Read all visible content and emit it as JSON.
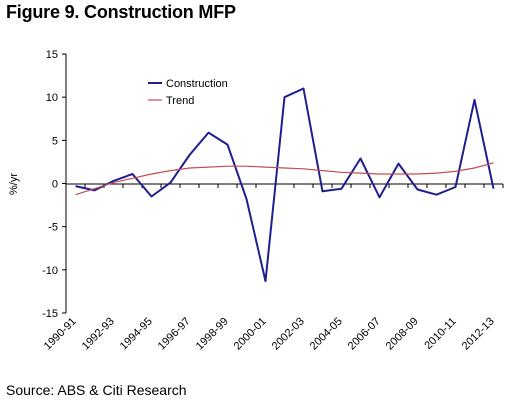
{
  "figure": {
    "title": "Figure 9. Construction MFP",
    "source": "Source: ABS & Citi Research"
  },
  "chart_data": {
    "type": "line",
    "title": "Figure 9. Construction MFP",
    "ylabel": "%/yr",
    "xlabel": "",
    "ylim": [
      -15,
      15
    ],
    "yticks": [
      -15,
      -10,
      -5,
      0,
      5,
      10,
      15
    ],
    "grid": false,
    "legend": "top-left",
    "categories": [
      "1990-91",
      "1991-92",
      "1992-93",
      "1993-94",
      "1994-95",
      "1995-96",
      "1996-97",
      "1997-98",
      "1998-99",
      "1999-00",
      "2000-01",
      "2001-02",
      "2002-03",
      "2003-04",
      "2004-05",
      "2005-06",
      "2006-07",
      "2007-08",
      "2008-09",
      "2009-10",
      "2010-11",
      "2011-12",
      "2012-13"
    ],
    "tick_labels": [
      "1990-91",
      "1992-93",
      "1994-95",
      "1996-97",
      "1998-99",
      "2000-01",
      "2002-03",
      "2004-05",
      "2006-07",
      "2008-09",
      "2010-11",
      "2012-13"
    ],
    "series": [
      {
        "name": "Construction",
        "color": "#1f1f8f",
        "values": [
          -0.3,
          -0.8,
          0.3,
          1.1,
          -1.5,
          0.1,
          3.3,
          5.9,
          4.5,
          -1.8,
          -11.3,
          10.0,
          11.0,
          -0.9,
          -0.6,
          2.9,
          -1.6,
          2.3,
          -0.7,
          -1.3,
          -0.4,
          9.7,
          -0.6
        ]
      },
      {
        "name": "Trend",
        "color": "#c0504d",
        "values": [
          -1.3,
          -0.6,
          0.1,
          0.6,
          1.1,
          1.5,
          1.8,
          1.9,
          2.0,
          2.0,
          1.9,
          1.8,
          1.7,
          1.5,
          1.3,
          1.2,
          1.1,
          1.1,
          1.1,
          1.2,
          1.4,
          1.8,
          2.4
        ]
      }
    ]
  }
}
